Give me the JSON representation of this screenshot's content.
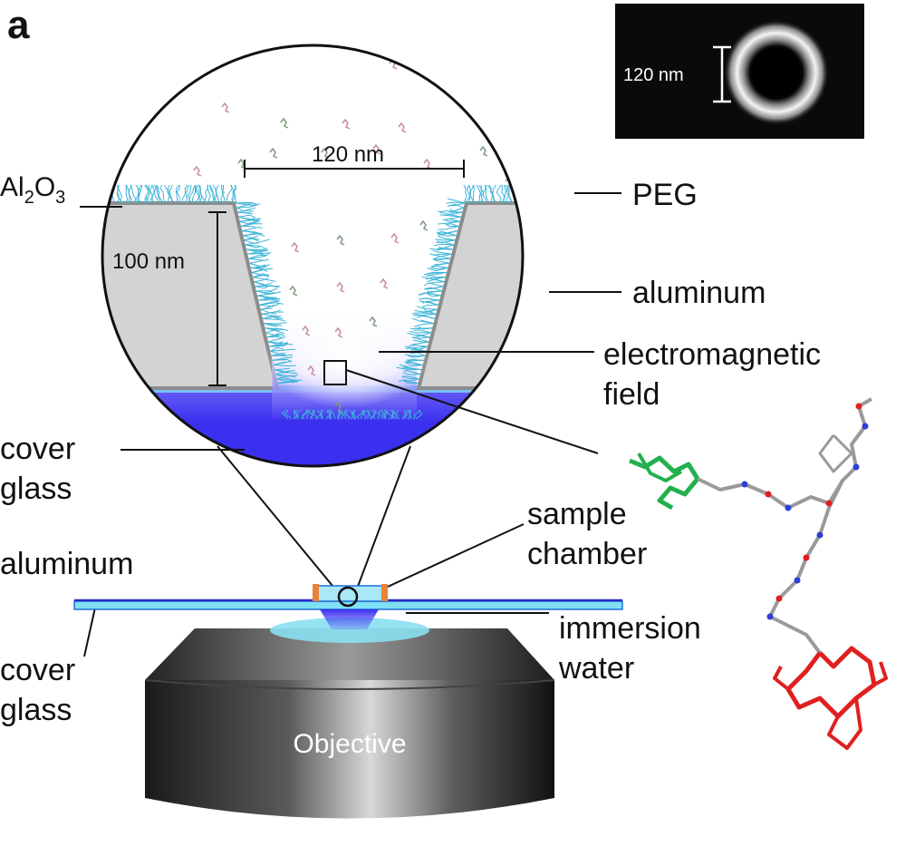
{
  "panel_letter": "a",
  "labels": {
    "al2o3_main": "Al",
    "al2o3_sub1": "2",
    "al2o3_mid": "O",
    "al2o3_sub2": "3",
    "peg": "PEG",
    "aluminum_well": "aluminum",
    "em_field_line1": "electromagnetic",
    "em_field_line2": "field",
    "cover_glass_top_line1": "cover",
    "cover_glass_top_line2": "glass",
    "aluminum_left": "aluminum",
    "cover_glass_bottom_line1": "cover",
    "cover_glass_bottom_line2": "glass",
    "sample_chamber_line1": "sample",
    "sample_chamber_line2": "chamber",
    "immersion_line1": "immersion",
    "immersion_line2": "water",
    "objective": "Objective"
  },
  "dimensions": {
    "well_width": "120 nm",
    "well_depth": "100 nm",
    "sem_scale": "120 nm"
  },
  "colors": {
    "aluminum_fill": "#d3d3d3",
    "aluminum_edge": "#8c8c8c",
    "peg": "#3fb4d8",
    "glass_blue": "#3a30f0",
    "glass_light": "#7fe0f5",
    "spacer_orange": "#e8823a",
    "molecule_green": "#22b14c",
    "molecule_red": "#e02020",
    "molecule_backbone": "#9a9a9a",
    "molecule_nitrogen": "#2d3fd6"
  }
}
